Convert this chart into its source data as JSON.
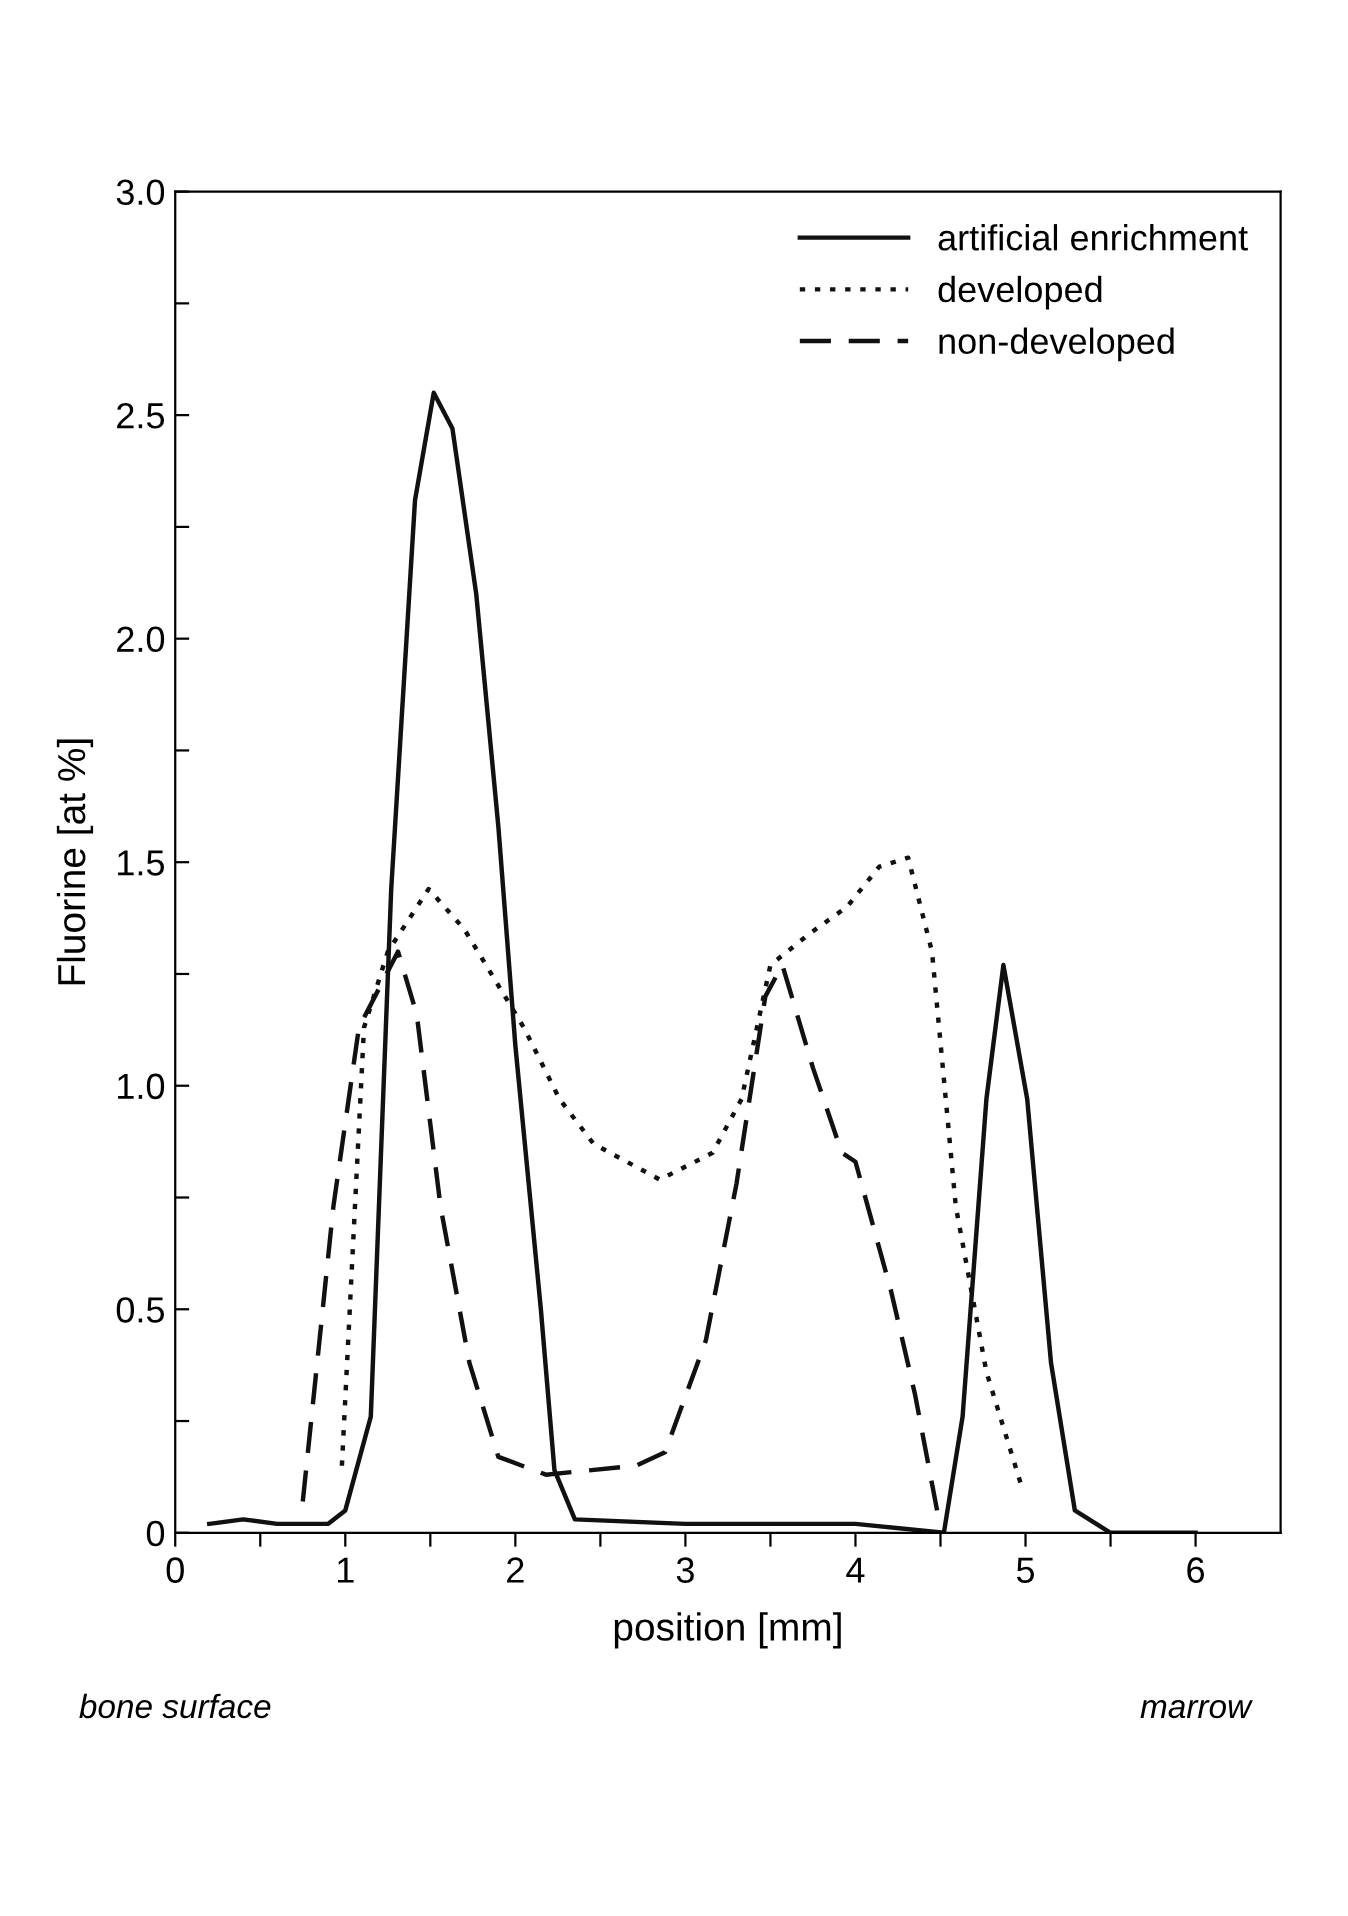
{
  "chart_data": {
    "type": "line",
    "xlabel": "position [mm]",
    "ylabel": "Fluorine [at %]",
    "xlim": [
      0,
      6.5
    ],
    "xticks": [
      0,
      {
        "value": 0.5,
        "label": null
      },
      1,
      {
        "value": 1.5,
        "label": null
      },
      2,
      {
        "value": 2.5,
        "label": null
      },
      3,
      {
        "value": 3.5,
        "label": null
      },
      4,
      {
        "value": 4.5,
        "label": null
      },
      5,
      {
        "value": 5.5,
        "label": null
      },
      6
    ],
    "ylim": [
      0,
      3.0
    ],
    "yticks": [
      0,
      {
        "value": 0.25,
        "label": null
      },
      {
        "value": 0.5,
        "label": "0.5"
      },
      {
        "value": 0.75,
        "label": null
      },
      {
        "value": 1.0,
        "label": "1.0"
      },
      {
        "value": 1.25,
        "label": null
      },
      {
        "value": 1.5,
        "label": "1.5"
      },
      {
        "value": 1.75,
        "label": null
      },
      {
        "value": 2.0,
        "label": "2.0"
      },
      {
        "value": 2.25,
        "label": null
      },
      {
        "value": 2.5,
        "label": "2.5"
      },
      {
        "value": 2.75,
        "label": null
      },
      {
        "value": 3.0,
        "label": "3.0"
      }
    ],
    "grid": false,
    "legend": "top right",
    "marker": "none",
    "annotations": [
      "bone surface",
      "marrow"
    ],
    "series": [
      {
        "name": "artificial enrichment",
        "color": "#111111",
        "line_style": "solid",
        "x": [
          0.2,
          0.4,
          0.6,
          0.9,
          1.0,
          1.15,
          1.27,
          1.41,
          1.52,
          1.63,
          1.77,
          1.9,
          2.0,
          2.15,
          2.23,
          2.35,
          3.0,
          4.0,
          4.52,
          4.63,
          4.77,
          4.87,
          5.01,
          5.15,
          5.29,
          5.5,
          6.0
        ],
        "values": [
          0.02,
          0.03,
          0.02,
          0.02,
          0.05,
          0.26,
          1.44,
          2.31,
          2.55,
          2.47,
          2.1,
          1.58,
          1.09,
          0.5,
          0.14,
          0.03,
          0.02,
          0.02,
          0.0,
          0.26,
          0.97,
          1.27,
          0.97,
          0.38,
          0.05,
          0.0,
          0.0
        ]
      },
      {
        "name": "developed",
        "color": "#111111",
        "line_style": "dotted",
        "x": [
          0.98,
          1.11,
          1.25,
          1.49,
          1.7,
          2.05,
          2.26,
          2.46,
          2.85,
          3.16,
          3.33,
          3.5,
          3.73,
          3.95,
          4.14,
          4.31,
          4.45,
          4.59,
          4.77,
          4.98
        ],
        "values": [
          0.15,
          1.13,
          1.3,
          1.44,
          1.35,
          1.13,
          0.97,
          0.87,
          0.79,
          0.85,
          0.97,
          1.27,
          1.34,
          1.4,
          1.49,
          1.51,
          1.3,
          0.73,
          0.36,
          0.1
        ]
      },
      {
        "name": "non-developed",
        "color": "#111111",
        "line_style": "dashed",
        "x": [
          0.75,
          0.93,
          1.08,
          1.31,
          1.42,
          1.56,
          1.73,
          1.9,
          2.18,
          2.71,
          2.88,
          3.12,
          3.3,
          3.47,
          3.57,
          3.75,
          3.92,
          4.0,
          4.21,
          4.35,
          4.48
        ],
        "values": [
          0.07,
          0.73,
          1.13,
          1.3,
          1.16,
          0.73,
          0.38,
          0.17,
          0.13,
          0.15,
          0.18,
          0.43,
          0.78,
          1.2,
          1.27,
          1.04,
          0.85,
          0.83,
          0.54,
          0.31,
          0.05
        ]
      }
    ]
  }
}
